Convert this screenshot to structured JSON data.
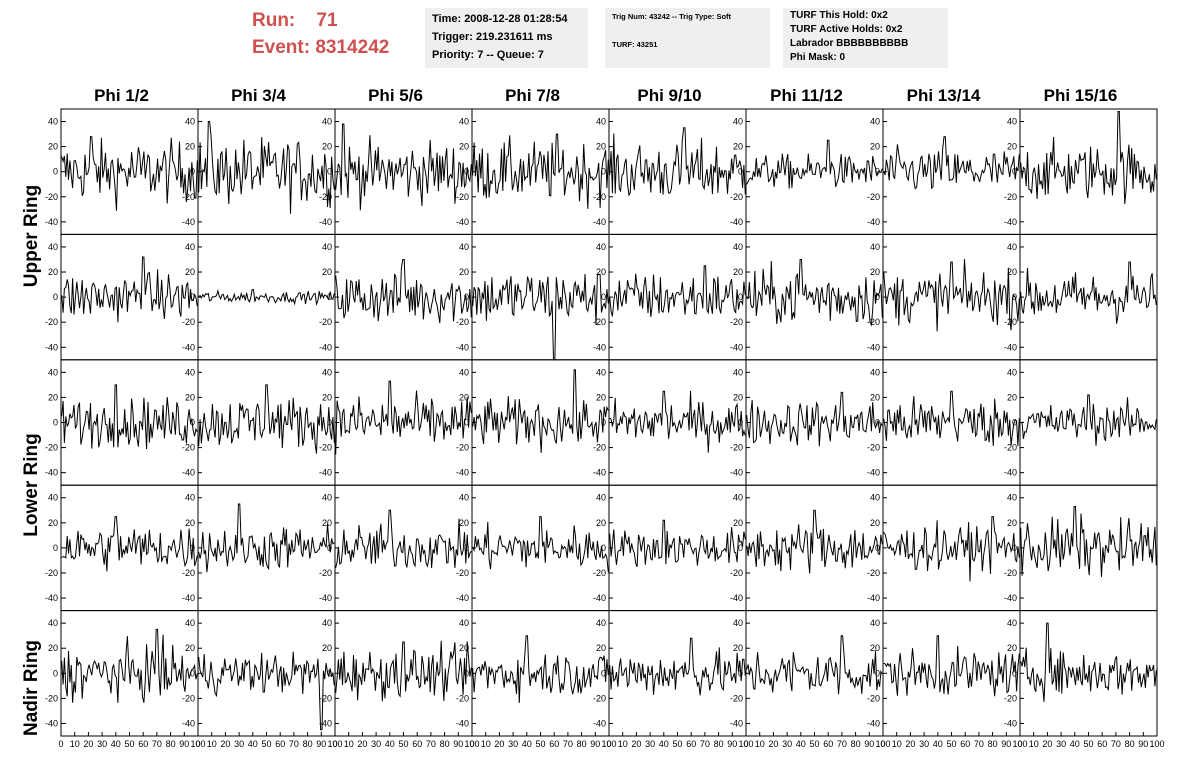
{
  "header": {
    "run_label": "Run:",
    "run_value": "71",
    "event_label": "Event:",
    "event_value": "8314242",
    "time": "Time: 2008-12-28 01:28:54",
    "trigger": "Trigger: 219.231611 ms",
    "priority": "Priority: 7 -- Queue: 7",
    "trig_num": "Trig Num: 43242 -- Trig Type: Soft",
    "turf": "TURF: 43251",
    "turf_this_hold": "TURF This Hold: 0x2",
    "turf_active_holds": "TURF Active Holds: 0x2",
    "labrador": "Labrador BBBBBBBBBB",
    "phi_mask": "Phi Mask: 0"
  },
  "colors": {
    "header_red": "#d05050",
    "info_background": "#efefef",
    "trace": "#000000"
  },
  "chart_data": {
    "type": "line",
    "title": "",
    "phi_sectors": [
      "Phi 1/2",
      "Phi 3/4",
      "Phi 5/6",
      "Phi 7/8",
      "Phi 9/10",
      "Phi 11/12",
      "Phi 13/14",
      "Phi 15/16"
    ],
    "rings": [
      "Upper Ring",
      "Upper Ring",
      "Lower Ring",
      "Lower Ring",
      "Nadir Ring"
    ],
    "ring_labels": [
      "Upper Ring",
      "Lower Ring",
      "Nadir Ring"
    ],
    "xlim": [
      0,
      100
    ],
    "ylim": [
      -50,
      50
    ],
    "x_ticks": [
      "0",
      "10",
      "20",
      "30",
      "40",
      "50",
      "60",
      "70",
      "80",
      "90",
      "100"
    ],
    "y_ticks": [
      "40",
      "20",
      "0",
      "-20",
      "-40"
    ],
    "samples_per_trace": 100,
    "trace_amplitude": [
      [
        16,
        18,
        16,
        16,
        16,
        9,
        12,
        15
      ],
      [
        13,
        3,
        14,
        15,
        13,
        15,
        14,
        13
      ],
      [
        13,
        14,
        14,
        13,
        12,
        12,
        13,
        10
      ],
      [
        12,
        12,
        12,
        12,
        10,
        13,
        12,
        15
      ],
      [
        14,
        11,
        13,
        12,
        12,
        13,
        12,
        12
      ]
    ],
    "trace_peaks": [
      [
        [
          22,
          28
        ],
        [
          8,
          40
        ],
        [
          6,
          38
        ],
        [
          62,
          30
        ],
        [
          55,
          35
        ],
        [
          60,
          25
        ],
        [
          45,
          28
        ],
        [
          72,
          48
        ]
      ],
      [
        [
          60,
          32
        ],
        [
          40,
          6
        ],
        [
          50,
          30
        ],
        [
          60,
          -50
        ],
        [
          70,
          25
        ],
        [
          40,
          30
        ],
        [
          50,
          28
        ],
        [
          80,
          28
        ]
      ],
      [
        [
          40,
          30
        ],
        [
          50,
          30
        ],
        [
          40,
          33
        ],
        [
          75,
          42
        ],
        [
          40,
          25
        ],
        [
          70,
          24
        ],
        [
          50,
          25
        ],
        [
          50,
          22
        ]
      ],
      [
        [
          40,
          25
        ],
        [
          30,
          35
        ],
        [
          40,
          30
        ],
        [
          50,
          25
        ],
        [
          40,
          22
        ],
        [
          50,
          30
        ],
        [
          80,
          25
        ],
        [
          40,
          33
        ]
      ],
      [
        [
          70,
          35
        ],
        [
          90,
          -45
        ],
        [
          50,
          25
        ],
        [
          40,
          30
        ],
        [
          60,
          28
        ],
        [
          70,
          30
        ],
        [
          40,
          30
        ],
        [
          20,
          40
        ]
      ]
    ]
  }
}
